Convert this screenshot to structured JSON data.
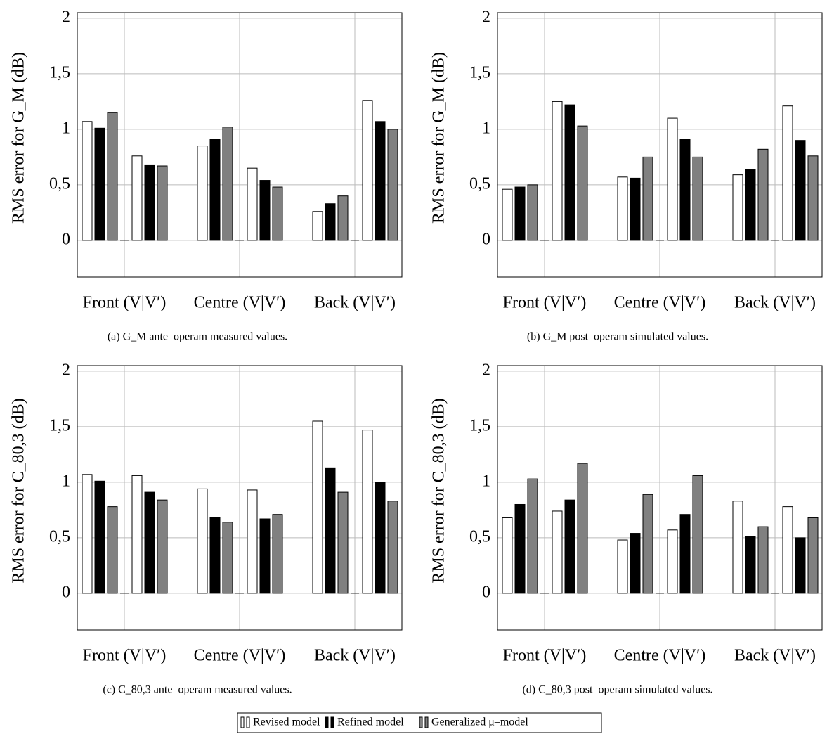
{
  "chart_data": [
    {
      "type": "bar",
      "ylabel": "RMS error for G_M (dB)",
      "caption": "(a) G_M ante–operam measured values.",
      "categories": [
        "Front (V|V′)",
        "Centre (V|V′)",
        "Back (V|V′)"
      ],
      "ylim": [
        -0.33,
        2.05
      ],
      "yticks": [
        0,
        {
          "value": 0.5,
          "label": "0,5"
        },
        1,
        {
          "value": 1.5,
          "label": "1,5"
        },
        2
      ],
      "grid": true,
      "series": [
        {
          "name": "Revised model",
          "color": "#ffffff",
          "values": [
            [
              1.07,
              0.76
            ],
            [
              0.85,
              0.65
            ],
            [
              0.26,
              1.26
            ]
          ]
        },
        {
          "name": "Refined model",
          "color": "#000000",
          "values": [
            [
              1.01,
              0.68
            ],
            [
              0.91,
              0.54
            ],
            [
              0.33,
              1.07
            ]
          ]
        },
        {
          "name": "Generalized μ–model",
          "color": "#808080",
          "values": [
            [
              1.15,
              0.67
            ],
            [
              1.02,
              0.48
            ],
            [
              0.4,
              1.0
            ]
          ]
        }
      ]
    },
    {
      "type": "bar",
      "ylabel": "RMS error for G_M (dB)",
      "caption": "(b) G_M post–operam simulated values.",
      "categories": [
        "Front (V|V′)",
        "Centre (V|V′)",
        "Back (V|V′)"
      ],
      "ylim": [
        -0.33,
        2.05
      ],
      "yticks": [
        0,
        {
          "value": 0.5,
          "label": "0,5"
        },
        1,
        {
          "value": 1.5,
          "label": "1,5"
        },
        2
      ],
      "grid": true,
      "series": [
        {
          "name": "Revised model",
          "color": "#ffffff",
          "values": [
            [
              0.46,
              1.25
            ],
            [
              0.57,
              1.1
            ],
            [
              0.59,
              1.21
            ]
          ]
        },
        {
          "name": "Refined model",
          "color": "#000000",
          "values": [
            [
              0.48,
              1.22
            ],
            [
              0.56,
              0.91
            ],
            [
              0.64,
              0.9
            ]
          ]
        },
        {
          "name": "Generalized μ–model",
          "color": "#808080",
          "values": [
            [
              0.5,
              1.03
            ],
            [
              0.75,
              0.75
            ],
            [
              0.82,
              0.76
            ]
          ]
        }
      ]
    },
    {
      "type": "bar",
      "ylabel": "RMS error for C_80,3 (dB)",
      "caption": "(c) C_80,3 ante–operam measured values.",
      "categories": [
        "Front (V|V′)",
        "Centre (V|V′)",
        "Back (V|V′)"
      ],
      "ylim": [
        -0.33,
        2.05
      ],
      "yticks": [
        0,
        {
          "value": 0.5,
          "label": "0,5"
        },
        1,
        {
          "value": 1.5,
          "label": "1,5"
        },
        2
      ],
      "grid": true,
      "series": [
        {
          "name": "Revised model",
          "color": "#ffffff",
          "values": [
            [
              1.07,
              1.06
            ],
            [
              0.94,
              0.93
            ],
            [
              1.55,
              1.47
            ]
          ]
        },
        {
          "name": "Refined model",
          "color": "#000000",
          "values": [
            [
              1.01,
              0.91
            ],
            [
              0.68,
              0.67
            ],
            [
              1.13,
              1.0
            ]
          ]
        },
        {
          "name": "Generalized μ–model",
          "color": "#808080",
          "values": [
            [
              0.78,
              0.84
            ],
            [
              0.64,
              0.71
            ],
            [
              0.91,
              0.83
            ]
          ]
        }
      ]
    },
    {
      "type": "bar",
      "ylabel": "RMS error for C_80,3 (dB)",
      "caption": "(d) C_80,3 post–operam simulated values.",
      "categories": [
        "Front (V|V′)",
        "Centre (V|V′)",
        "Back (V|V′)"
      ],
      "ylim": [
        -0.33,
        2.05
      ],
      "yticks": [
        0,
        {
          "value": 0.5,
          "label": "0,5"
        },
        1,
        {
          "value": 1.5,
          "label": "1,5"
        },
        2
      ],
      "grid": true,
      "series": [
        {
          "name": "Revised model",
          "color": "#ffffff",
          "values": [
            [
              0.68,
              0.74
            ],
            [
              0.48,
              0.57
            ],
            [
              0.83,
              0.78
            ]
          ]
        },
        {
          "name": "Refined model",
          "color": "#000000",
          "values": [
            [
              0.8,
              0.84
            ],
            [
              0.54,
              0.71
            ],
            [
              0.51,
              0.5
            ]
          ]
        },
        {
          "name": "Generalized μ–model",
          "color": "#808080",
          "values": [
            [
              1.03,
              1.17
            ],
            [
              0.89,
              1.06
            ],
            [
              0.6,
              0.68
            ]
          ]
        }
      ]
    }
  ]
}
